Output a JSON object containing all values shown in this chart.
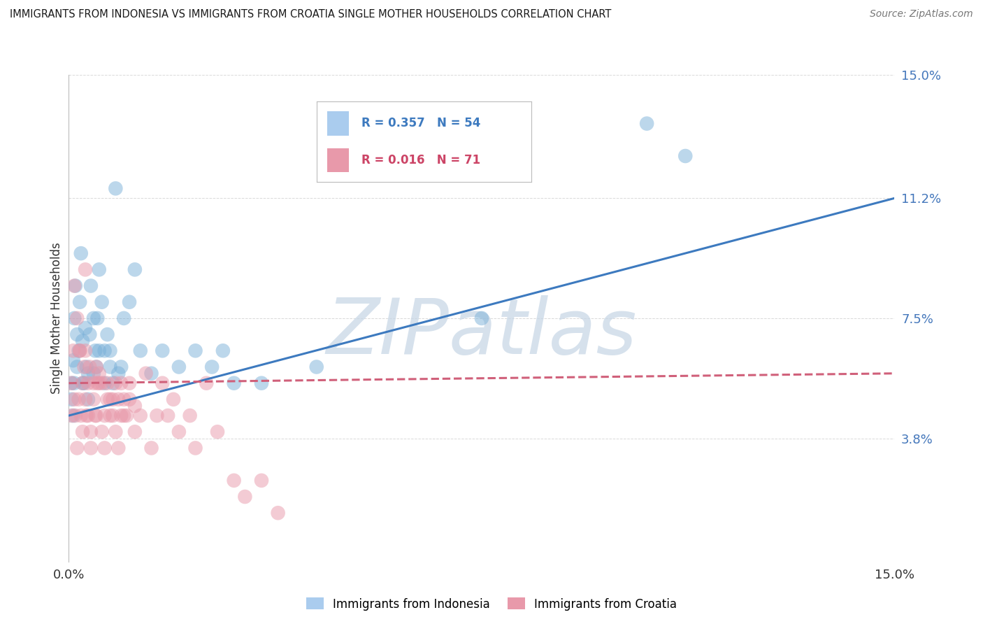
{
  "title": "IMMIGRANTS FROM INDONESIA VS IMMIGRANTS FROM CROATIA SINGLE MOTHER HOUSEHOLDS CORRELATION CHART",
  "source": "Source: ZipAtlas.com",
  "ylabel": "Single Mother Households",
  "xlim": [
    0.0,
    15.0
  ],
  "ylim": [
    0.0,
    15.0
  ],
  "yticks": [
    0.0,
    3.8,
    7.5,
    11.2,
    15.0
  ],
  "xtick_labels": [
    "0.0%",
    "15.0%"
  ],
  "ytick_labels": [
    "",
    "3.8%",
    "7.5%",
    "11.2%",
    "15.0%"
  ],
  "grid_color": "#d0d0d0",
  "background_color": "#ffffff",
  "watermark": "ZIPatlas",
  "watermark_color": "#c5d5e5",
  "series": [
    {
      "name": "Immigrants from Indonesia",
      "R": "0.357",
      "N": "54",
      "color": "#7ab0d8",
      "trend_color": "#3d7abf",
      "trend_style": "solid",
      "trend_start_x": 0.0,
      "trend_start_y": 4.5,
      "trend_end_x": 15.0,
      "trend_end_y": 11.2,
      "x": [
        0.05,
        0.08,
        0.1,
        0.12,
        0.15,
        0.18,
        0.2,
        0.22,
        0.25,
        0.28,
        0.3,
        0.32,
        0.35,
        0.38,
        0.4,
        0.45,
        0.48,
        0.5,
        0.52,
        0.55,
        0.6,
        0.65,
        0.7,
        0.75,
        0.8,
        0.85,
        0.9,
        0.95,
        1.0,
        1.1,
        1.2,
        1.3,
        1.5,
        1.7,
        2.0,
        2.3,
        2.6,
        2.8,
        3.0,
        0.05,
        0.1,
        0.15,
        0.25,
        0.35,
        0.45,
        0.55,
        0.65,
        0.75,
        3.5,
        4.5,
        7.5,
        10.5,
        11.2,
        0.08
      ],
      "y": [
        5.5,
        6.2,
        7.5,
        8.5,
        7.0,
        6.5,
        8.0,
        9.5,
        6.8,
        5.5,
        7.2,
        6.0,
        5.8,
        7.0,
        8.5,
        7.5,
        6.5,
        6.0,
        7.5,
        9.0,
        8.0,
        6.5,
        7.0,
        6.5,
        5.5,
        11.5,
        5.8,
        6.0,
        7.5,
        8.0,
        9.0,
        6.5,
        5.8,
        6.5,
        6.0,
        6.5,
        6.0,
        6.5,
        5.5,
        5.0,
        5.5,
        6.0,
        5.5,
        5.0,
        5.8,
        6.5,
        5.5,
        6.0,
        5.5,
        6.0,
        7.5,
        13.5,
        12.5,
        4.5
      ]
    },
    {
      "name": "Immigrants from Croatia",
      "R": "0.016",
      "N": "71",
      "color": "#e899aa",
      "trend_color": "#d0607a",
      "trend_style": "dashed",
      "trend_start_x": 0.0,
      "trend_start_y": 5.5,
      "trend_end_x": 15.0,
      "trend_end_y": 5.8,
      "x": [
        0.05,
        0.08,
        0.1,
        0.12,
        0.15,
        0.18,
        0.2,
        0.22,
        0.25,
        0.28,
        0.3,
        0.32,
        0.35,
        0.38,
        0.4,
        0.45,
        0.48,
        0.5,
        0.52,
        0.55,
        0.6,
        0.65,
        0.7,
        0.75,
        0.8,
        0.85,
        0.9,
        0.95,
        1.0,
        1.05,
        1.1,
        1.2,
        1.3,
        1.4,
        1.5,
        1.6,
        1.7,
        1.8,
        1.9,
        2.0,
        2.2,
        2.3,
        2.5,
        2.7,
        3.0,
        3.2,
        3.5,
        3.8,
        0.05,
        0.1,
        0.15,
        0.2,
        0.25,
        0.3,
        0.35,
        0.4,
        0.45,
        0.5,
        0.55,
        0.6,
        0.65,
        0.7,
        0.75,
        0.8,
        0.85,
        0.9,
        0.95,
        1.0,
        1.1,
        1.2,
        0.3
      ],
      "y": [
        5.5,
        6.5,
        8.5,
        4.5,
        7.5,
        5.0,
        6.5,
        4.5,
        5.5,
        6.0,
        5.0,
        4.5,
        5.5,
        6.0,
        4.0,
        5.0,
        4.5,
        6.0,
        5.5,
        5.8,
        5.5,
        4.5,
        5.5,
        4.5,
        5.0,
        4.0,
        5.0,
        5.5,
        5.0,
        4.5,
        5.5,
        4.8,
        4.5,
        5.8,
        3.5,
        4.5,
        5.5,
        4.5,
        5.0,
        4.0,
        4.5,
        3.5,
        5.5,
        4.0,
        2.5,
        2.0,
        2.5,
        1.5,
        4.5,
        5.0,
        3.5,
        6.5,
        4.0,
        6.5,
        4.5,
        3.5,
        5.5,
        4.5,
        5.5,
        4.0,
        3.5,
        5.0,
        5.0,
        4.5,
        5.5,
        3.5,
        4.5,
        4.5,
        5.0,
        4.0,
        9.0
      ]
    }
  ]
}
